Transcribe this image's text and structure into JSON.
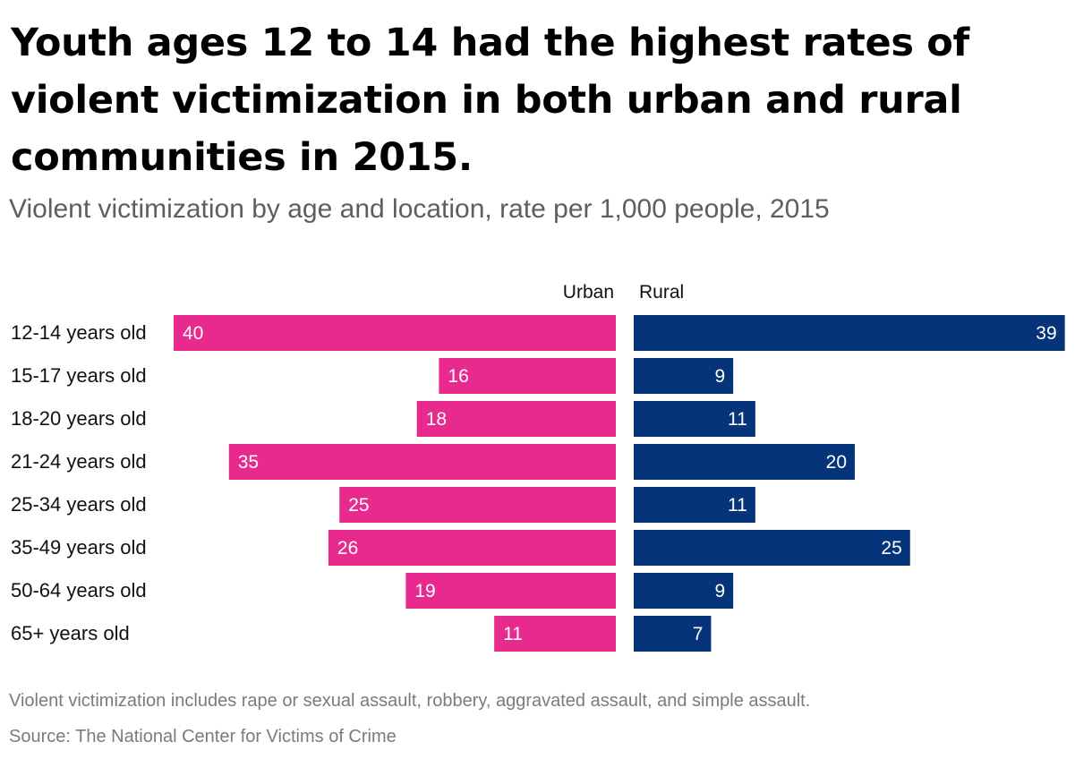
{
  "header": {
    "title": "Youth ages 12 to 14 had the highest rates of violent victimization in both urban and rural communities in 2015.",
    "subtitle": "Violent victimization by age and location, rate per 1,000 people, 2015"
  },
  "footer": {
    "note": "Violent victimization includes rape or sexual assault, robbery, aggravated assault, and simple assault.",
    "source": "Source: The National Center for Victims of Crime"
  },
  "colors": {
    "urban": "#e8298e",
    "rural": "#05347a",
    "label_inside": "#ffffff",
    "category_text": "#111111"
  },
  "chart_data": {
    "type": "bar",
    "layout": "diverging-back-to-back",
    "title": "Youth ages 12 to 14 had the highest rates of violent victimization in both urban and rural communities in 2015.",
    "subtitle": "Violent victimization by age and location, rate per 1,000 people, 2015",
    "categories": [
      "12-14 years old",
      "15-17 years old",
      "18-20 years old",
      "21-24 years old",
      "25-34 years old",
      "35-49 years old",
      "50-64 years old",
      "65+ years old"
    ],
    "series": [
      {
        "name": "Urban",
        "values": [
          40,
          16,
          18,
          35,
          25,
          26,
          19,
          11
        ]
      },
      {
        "name": "Rural",
        "values": [
          39,
          9,
          11,
          20,
          11,
          25,
          9,
          7
        ]
      }
    ],
    "xlim": [
      0,
      40
    ],
    "grid": false,
    "legend": "column headers above bars"
  }
}
